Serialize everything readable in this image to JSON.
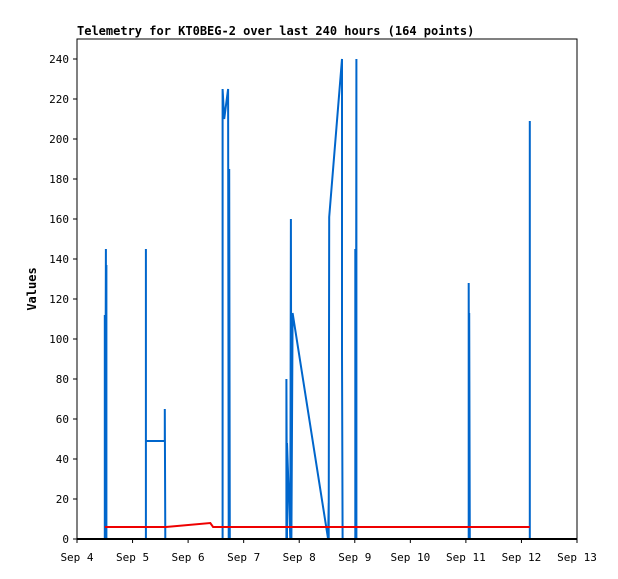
{
  "chart_data": {
    "type": "line",
    "title": "Telemetry for KT0BEG-2 over last 240 hours (164 points)",
    "ylabel": "Values",
    "xlabel": "",
    "xlim": [
      4,
      13
    ],
    "ylim": [
      0,
      250
    ],
    "x_ticks": [
      4,
      5,
      6,
      7,
      8,
      9,
      10,
      11,
      12,
      13
    ],
    "x_tick_labels": [
      "Sep 4",
      "Sep 5",
      "Sep 6",
      "Sep 7",
      "Sep 8",
      "Sep 9",
      "Sep 10",
      "Sep 11",
      "Sep 12",
      "Sep 13"
    ],
    "y_ticks": [
      0,
      20,
      40,
      60,
      80,
      100,
      120,
      140,
      160,
      180,
      200,
      220,
      240
    ],
    "series": [
      {
        "color": "#0066cc",
        "x": [
          4.5,
          4.5,
          4.51,
          4.52,
          4.52,
          4.53,
          4.53,
          5.24,
          5.24,
          5.24,
          5.58,
          5.58,
          5.59,
          5.6,
          6.62,
          6.62,
          6.65,
          6.72,
          6.73,
          6.74,
          6.75,
          7.77,
          7.77,
          7.78,
          7.78,
          7.84,
          7.85,
          7.86,
          7.88,
          8.52,
          8.53,
          8.53,
          8.54,
          8.77,
          8.77,
          8.78,
          8.8,
          9.01,
          9.01,
          9.02,
          9.03,
          9.03,
          11.05,
          11.05,
          11.06,
          11.06,
          11.07,
          11.07,
          12.15,
          12.15
        ],
        "y": [
          0,
          112,
          36,
          145,
          32,
          137,
          0,
          0,
          145,
          49,
          49,
          65,
          0,
          0,
          0,
          225,
          210,
          225,
          0,
          185,
          0,
          0,
          80,
          0,
          48,
          0,
          160,
          0,
          113,
          0,
          18,
          0,
          161,
          240,
          93,
          0,
          0,
          0,
          145,
          0,
          240,
          0,
          0,
          128,
          0,
          113,
          0,
          0,
          0,
          209
        ]
      },
      {
        "color": "#ee0000",
        "x": [
          4.5,
          5.6,
          6.4,
          6.4,
          6.45,
          12.15
        ],
        "y": [
          6,
          6,
          8,
          8,
          6,
          6
        ]
      }
    ],
    "grid": false
  }
}
